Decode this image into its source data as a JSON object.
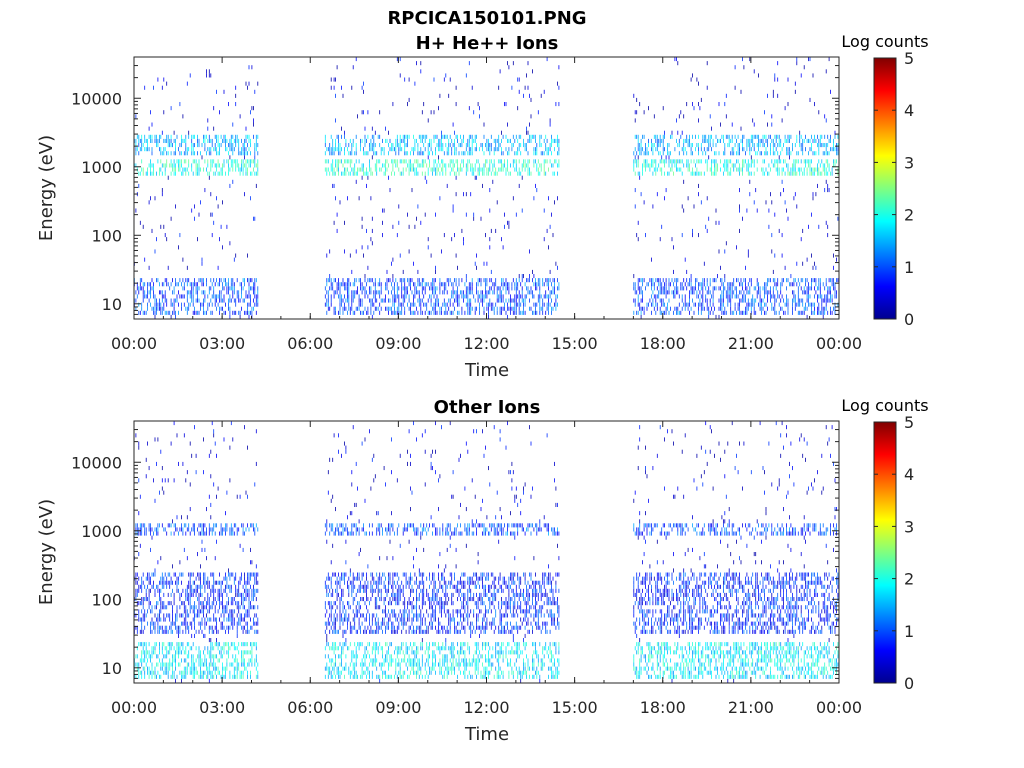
{
  "figure": {
    "title": "RPCICA150101.PNG"
  },
  "chart_data": [
    {
      "type": "heatmap",
      "title": "H+ He++ Ions",
      "xlabel": "Time",
      "ylabel": "Energy (eV)",
      "x_ticks": [
        "00:00",
        "03:00",
        "06:00",
        "09:00",
        "12:00",
        "15:00",
        "18:00",
        "21:00",
        "00:00"
      ],
      "x_range_hours": [
        0,
        24
      ],
      "y_scale": "log",
      "y_ticks": [
        10,
        100,
        1000,
        10000
      ],
      "y_tick_labels": [
        "10",
        "100",
        "1000",
        "10000"
      ],
      "y_range_eV": [
        6,
        40000
      ],
      "colorbar": {
        "label": "Log counts",
        "range": [
          0,
          5
        ],
        "ticks": [
          "0",
          "1",
          "2",
          "3",
          "4",
          "5"
        ],
        "colormap": "jet"
      },
      "data_intervals_hours": [
        [
          0,
          4.2
        ],
        [
          6.5,
          14.5
        ],
        [
          17.0,
          24.0
        ]
      ],
      "bands": [
        {
          "emin": 700,
          "emax": 1300,
          "level": 2.0
        },
        {
          "emin": 1500,
          "emax": 2800,
          "level": 1.5
        },
        {
          "emin": 7,
          "emax": 25,
          "level": 1.0
        }
      ]
    },
    {
      "type": "heatmap",
      "title": "Other Ions",
      "xlabel": "Time",
      "ylabel": "Energy (eV)",
      "x_ticks": [
        "00:00",
        "03:00",
        "06:00",
        "09:00",
        "12:00",
        "15:00",
        "18:00",
        "21:00",
        "00:00"
      ],
      "x_range_hours": [
        0,
        24
      ],
      "y_scale": "log",
      "y_ticks": [
        10,
        100,
        1000,
        10000
      ],
      "y_tick_labels": [
        "10",
        "100",
        "1000",
        "10000"
      ],
      "y_range_eV": [
        6,
        40000
      ],
      "colorbar": {
        "label": "Log counts",
        "range": [
          0,
          5
        ],
        "ticks": [
          "0",
          "1",
          "2",
          "3",
          "4",
          "5"
        ],
        "colormap": "jet"
      },
      "data_intervals_hours": [
        [
          0,
          4.2
        ],
        [
          6.5,
          14.5
        ],
        [
          17.0,
          24.0
        ]
      ],
      "bands": [
        {
          "emin": 7,
          "emax": 25,
          "level": 1.8
        },
        {
          "emin": 800,
          "emax": 1200,
          "level": 1.0
        },
        {
          "emin": 30,
          "emax": 250,
          "level": 0.8
        }
      ]
    }
  ]
}
